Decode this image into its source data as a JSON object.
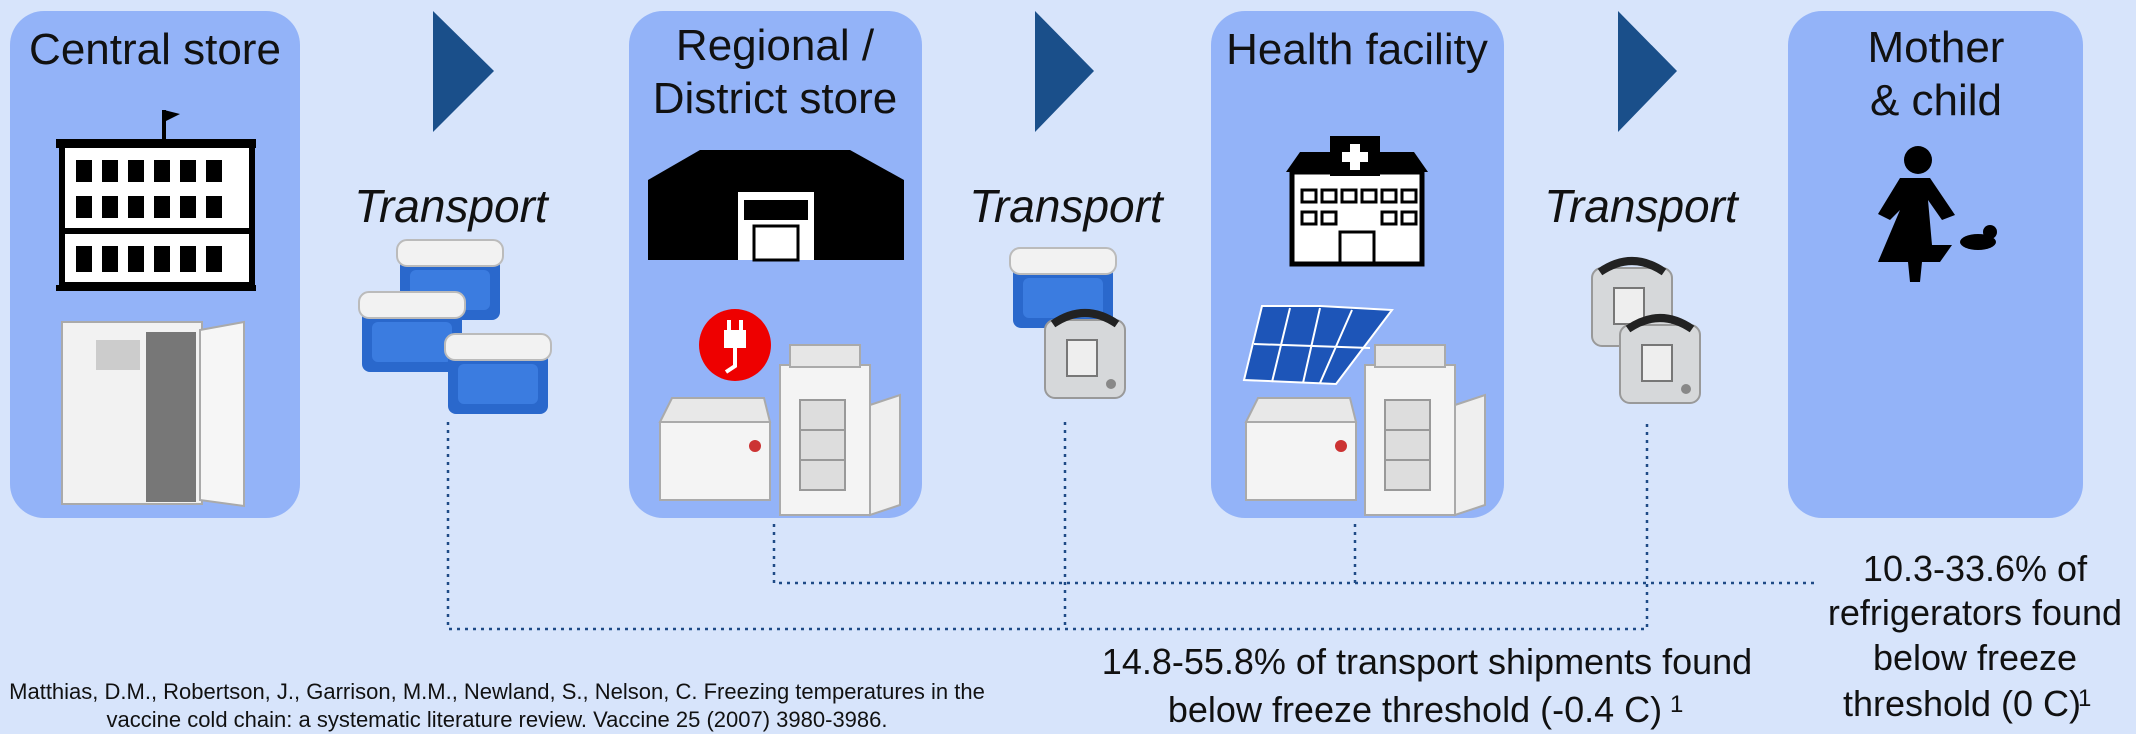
{
  "stages": [
    {
      "title": [
        "Central store"
      ]
    },
    {
      "title": [
        "Regional /",
        "District store"
      ]
    },
    {
      "title": [
        "Health facility"
      ]
    },
    {
      "title": [
        "Mother",
        "& child"
      ]
    }
  ],
  "transports": [
    "Transport",
    "Transport",
    "Transport"
  ],
  "annotations": [
    {
      "lines": [
        "14.8-55.8% of transport shipments found",
        "below freeze threshold (-0.4 C)"
      ],
      "footnote": "1"
    },
    {
      "lines": [
        "10.3-33.6% of",
        "refrigerators found",
        "below freeze",
        "threshold (0 C)"
      ],
      "footnote": "1"
    }
  ],
  "citation": [
    "Matthias, D.M., Robertson, J., Garrison, M.M., Newland, S., Nelson, C. Freezing temperatures in the",
    "vaccine cold chain: a systematic literature review. Vaccine 25 (2007) 3980-3986."
  ]
}
